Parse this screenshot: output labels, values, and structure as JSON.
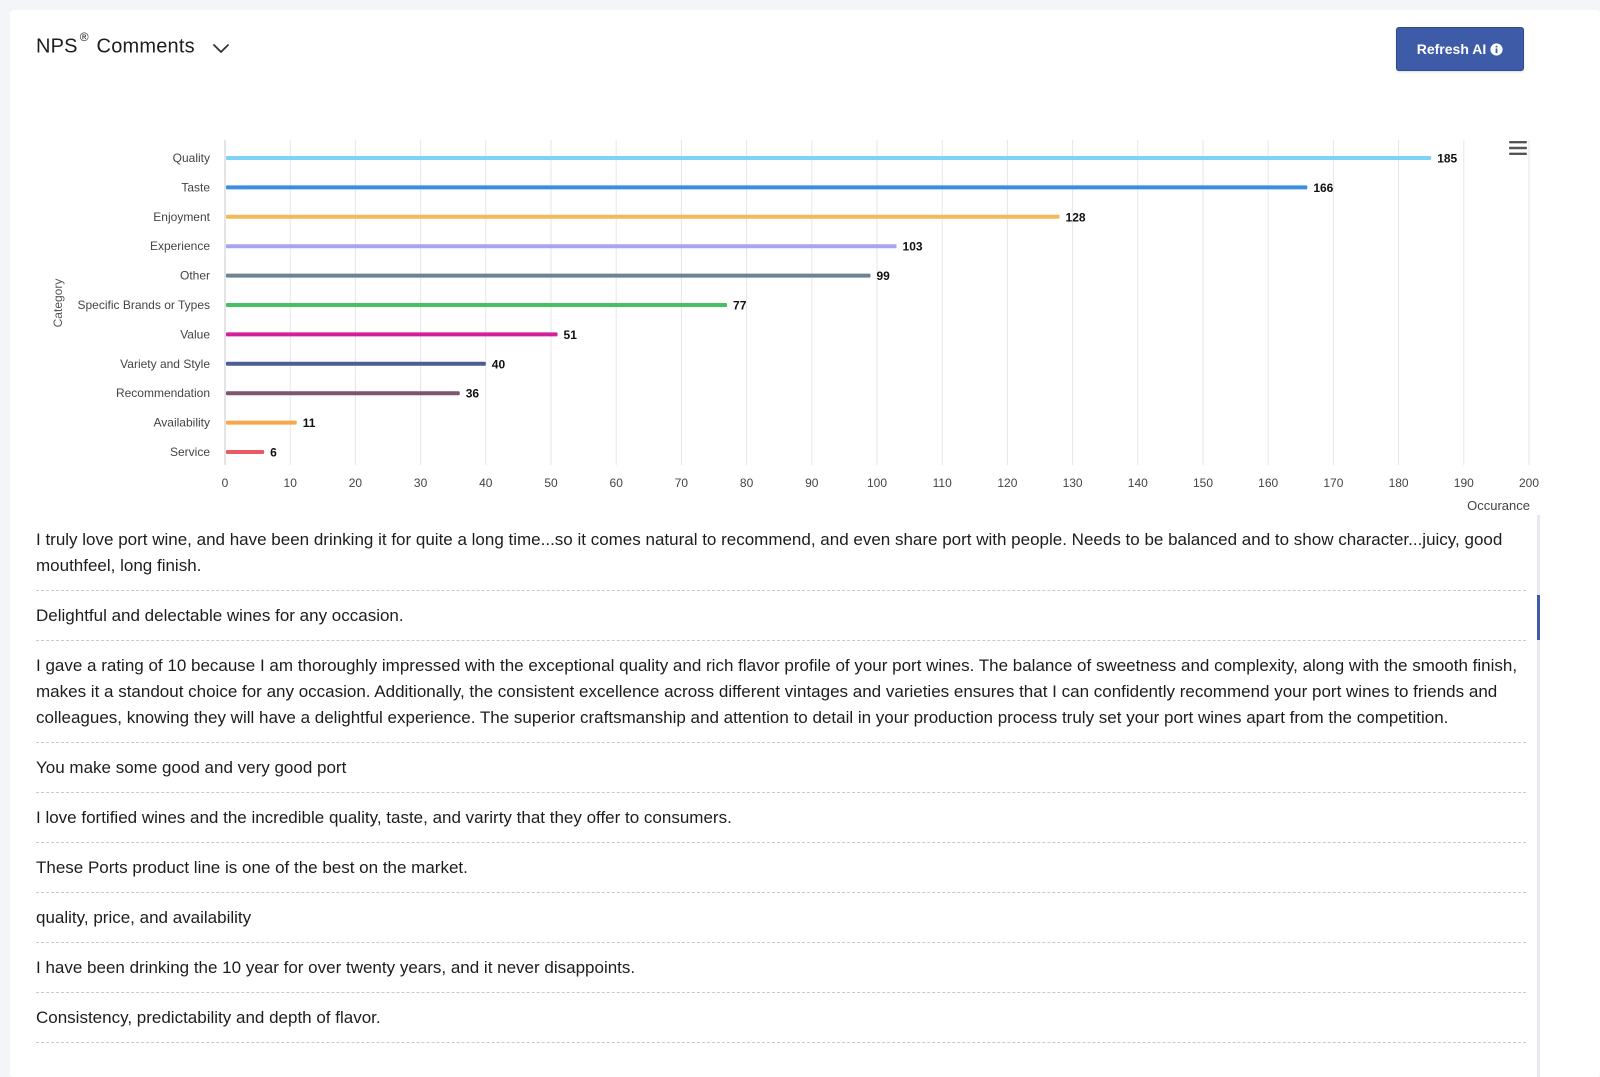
{
  "header": {
    "title_main": "NPS",
    "title_sup": "®",
    "title_rest": "Comments",
    "dropdown_icon": "chevron-down-icon"
  },
  "refresh_button": {
    "label": "Refresh AI",
    "icon": "info-circle-icon"
  },
  "chart_menu_icon": "hamburger-menu-icon",
  "colors": {
    "accent": "#3d5ba6"
  },
  "chart_data": {
    "type": "bar",
    "orientation": "horizontal",
    "title": "",
    "xlabel": "Occurance",
    "ylabel": "Category",
    "xlim": [
      0,
      200
    ],
    "x_ticks": [
      0,
      10,
      20,
      30,
      40,
      50,
      60,
      70,
      80,
      90,
      100,
      110,
      120,
      130,
      140,
      150,
      160,
      170,
      180,
      190,
      200
    ],
    "grid": true,
    "legend": "none",
    "data_labels": true,
    "categories": [
      "Quality",
      "Taste",
      "Enjoyment",
      "Experience",
      "Other",
      "Specific Brands or Types",
      "Value",
      "Variety and Style",
      "Recommendation",
      "Availability",
      "Service"
    ],
    "values": [
      185,
      166,
      128,
      103,
      99,
      77,
      51,
      40,
      36,
      11,
      6
    ],
    "colors": [
      "#7dd3f5",
      "#3b8fe0",
      "#f5b95a",
      "#a8a3f2",
      "#6f8493",
      "#45c063",
      "#d21f9c",
      "#4a5d94",
      "#7e5470",
      "#f5a84a",
      "#e85a64"
    ]
  },
  "comments": [
    "I truly love port wine, and have been drinking it for quite a long time...so it comes natural to recommend, and even share port with people. Needs to be balanced and to show character...juicy, good mouthfeel, long finish.",
    "Delightful and delectable wines for any occasion.",
    "I gave a rating of 10 because I am thoroughly impressed with the exceptional quality and rich flavor profile of your port wines. The balance of sweetness and complexity, along with the smooth finish, makes it a standout choice for any occasion. Additionally, the consistent excellence across different vintages and varieties ensures that I can confidently recommend your port wines to friends and colleagues, knowing they will have a delightful experience. The superior craftsmanship and attention to detail in your production process truly set your port wines apart from the competition.",
    "You make some good and very good port",
    "I love fortified wines and the incredible quality, taste, and varirty that they offer to consumers.",
    "These Ports product line is one of the best on the market.",
    "quality, price, and availability",
    "I have been drinking the 10 year for over twenty years, and it never disappoints.",
    "Consistency, predictability and depth of flavor."
  ]
}
